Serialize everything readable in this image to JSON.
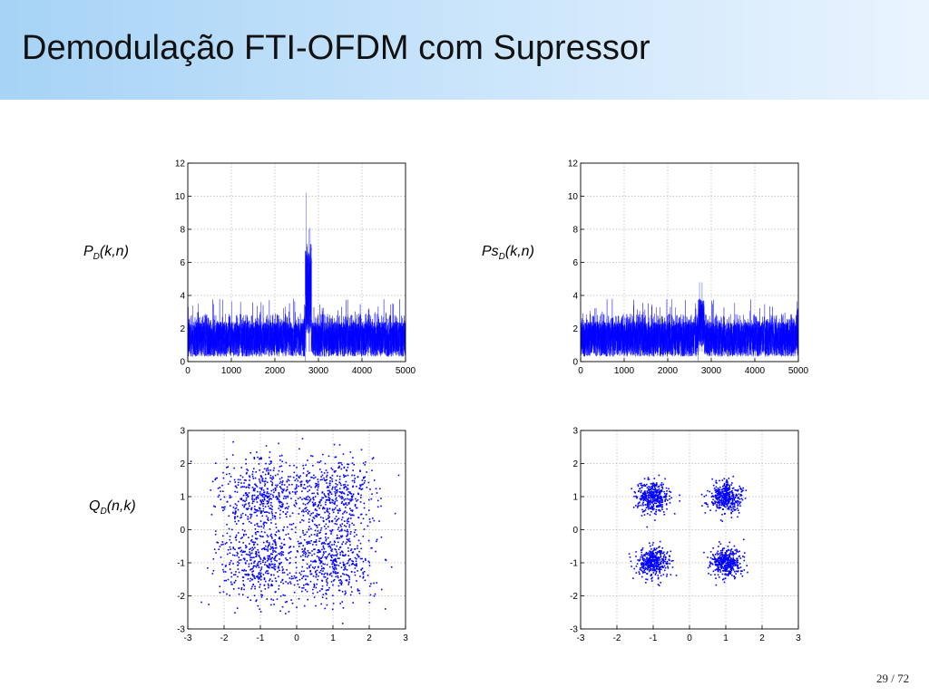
{
  "slide": {
    "title": "Demodulação FTI-OFDM com Supressor",
    "page": "29 / 72"
  },
  "labels": {
    "pd": {
      "base": "P",
      "sub": "D",
      "args": "(k,n)"
    },
    "psd": {
      "base": "Ps",
      "sub": "D",
      "args": "(k,n)"
    },
    "qd": {
      "base": "Q",
      "sub": "D",
      "args": "(n,k)"
    }
  },
  "colors": {
    "series": "#0000ff",
    "grid": "#b5b5b5",
    "header_start": "#a6d3f6",
    "header_end": "#e9f4fe"
  },
  "chart_data": [
    {
      "id": "pd",
      "type": "line",
      "x_range": [
        0,
        5000
      ],
      "ylim": [
        0,
        12
      ],
      "xticks": [
        0,
        1000,
        2000,
        3000,
        4000,
        5000
      ],
      "yticks": [
        0,
        2,
        4,
        6,
        8,
        10,
        12
      ],
      "grid": true,
      "noise": {
        "n_points": 5000,
        "mean": 1.2,
        "typical_max": 2.5,
        "peak_max": 3.8
      },
      "burst": {
        "x_start": 2700,
        "x_end": 2840,
        "level": 6.5,
        "peaks": [
          {
            "x": 2720,
            "y": 10.2
          },
          {
            "x": 2780,
            "y": 8.0
          },
          {
            "x": 2810,
            "y": 8.1
          }
        ]
      }
    },
    {
      "id": "psd",
      "type": "line",
      "x_range": [
        0,
        5000
      ],
      "ylim": [
        0,
        12
      ],
      "xticks": [
        0,
        1000,
        2000,
        3000,
        4000,
        5000
      ],
      "yticks": [
        0,
        2,
        4,
        6,
        8,
        10,
        12
      ],
      "grid": true,
      "noise": {
        "n_points": 5000,
        "mean": 1.2,
        "typical_max": 2.5,
        "peak_max": 3.8
      },
      "burst": {
        "x_start": 2700,
        "x_end": 2840,
        "level": 3.5,
        "peaks": [
          {
            "x": 2730,
            "y": 4.8
          },
          {
            "x": 2790,
            "y": 4.8
          }
        ]
      }
    },
    {
      "id": "qd",
      "type": "scatter",
      "xlim": [
        -3,
        3
      ],
      "ylim": [
        -3,
        3
      ],
      "xticks": [
        -3,
        -2,
        -1,
        0,
        1,
        2,
        3
      ],
      "yticks": [
        -3,
        -2,
        -1,
        0,
        1,
        2,
        3
      ],
      "grid": true,
      "clusters": [
        {
          "x": -1,
          "y": 1
        },
        {
          "x": 1,
          "y": 1
        },
        {
          "x": -1,
          "y": -1
        },
        {
          "x": 1,
          "y": -1
        }
      ],
      "n_points": 2000,
      "spread_std": 0.6
    },
    {
      "id": "qs",
      "type": "scatter",
      "xlim": [
        -3,
        3
      ],
      "ylim": [
        -3,
        3
      ],
      "xticks": [
        -3,
        -2,
        -1,
        0,
        1,
        2,
        3
      ],
      "yticks": [
        -3,
        -2,
        -1,
        0,
        1,
        2,
        3
      ],
      "grid": true,
      "clusters": [
        {
          "x": -1,
          "y": 1
        },
        {
          "x": 1,
          "y": 1
        },
        {
          "x": -1,
          "y": -1
        },
        {
          "x": 1,
          "y": -1
        }
      ],
      "n_points": 1600,
      "spread_std": 0.22
    }
  ]
}
